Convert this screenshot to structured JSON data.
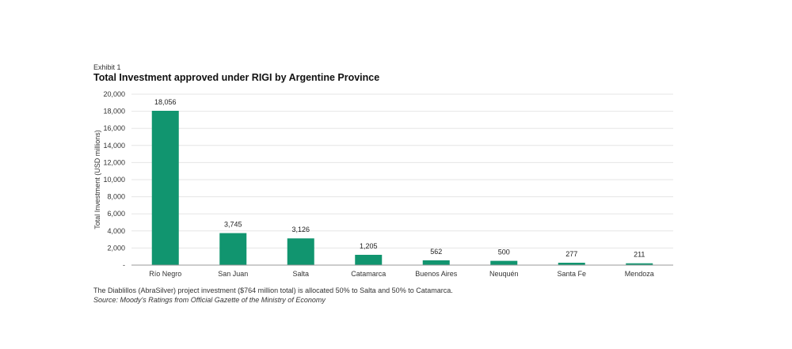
{
  "header": {
    "exhibit": "Exhibit 1",
    "title": "Total Investment approved under RIGI by Argentine Province"
  },
  "footer": {
    "note": "The Diablillos (AbraSilver) project investment ($764 million total) is allocated 50% to Salta and 50% to Catamarca.",
    "source": "Source: Moody's Ratings from Official Gazette of the Ministry of Economy"
  },
  "colors": {
    "bar": "#11956f",
    "grid": "#e6e6e6",
    "axis": "#999999"
  },
  "chart_data": {
    "type": "bar",
    "title": "Total Investment approved under RIGI by Argentine Province",
    "xlabel": "",
    "ylabel": "Total Investment (USD millions)",
    "ylim": [
      0,
      20000
    ],
    "yticks": [
      0,
      2000,
      4000,
      6000,
      8000,
      10000,
      12000,
      14000,
      16000,
      18000,
      20000
    ],
    "ytick_labels": [
      "-",
      "2,000",
      "4,000",
      "6,000",
      "8,000",
      "10,000",
      "12,000",
      "14,000",
      "16,000",
      "18,000",
      "20,000"
    ],
    "grid": true,
    "categories": [
      "Río Negro",
      "San Juan",
      "Salta",
      "Catamarca",
      "Buenos Aires",
      "Neuquén",
      "Santa Fe",
      "Mendoza"
    ],
    "values": [
      18056,
      3745,
      3126,
      1205,
      562,
      500,
      277,
      211
    ],
    "data_labels": [
      "18,056",
      "3,745",
      "3,126",
      "1,205",
      "562",
      "500",
      "277",
      "211"
    ]
  }
}
